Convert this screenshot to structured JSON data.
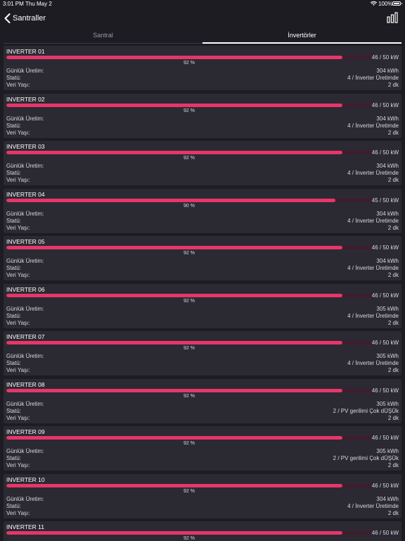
{
  "status_bar": {
    "time": "3:01 PM",
    "date": "Thu May 2",
    "battery": "100%",
    "icons": [
      "wifi-icon",
      "battery-icon"
    ]
  },
  "nav": {
    "back_label": "Santraller",
    "icons": [
      "chevron-left-icon",
      "bar-chart-icon"
    ]
  },
  "tabs": [
    {
      "label": "Santral",
      "active": false
    },
    {
      "label": "İnvertörler",
      "active": true
    }
  ],
  "labels": {
    "daily": "Günlük Üretim:",
    "status": "Statü:",
    "age": "Veri Yaşı:"
  },
  "colors": {
    "bar": "#e8356a",
    "track": "#3f1d2c",
    "card": "#2b2a33",
    "background": "#1d1c22"
  },
  "inverters": [
    {
      "name": "INVERTER 01",
      "percent_value": 92,
      "percent": "92 %",
      "power": "46 / 50 kW",
      "daily": "304 kWh",
      "status": "4 / İnverter Üretimde",
      "age": "2 dk"
    },
    {
      "name": "INVERTER 02",
      "percent_value": 92,
      "percent": "92 %",
      "power": "46 / 50 kW",
      "daily": "304 kWh",
      "status": "4 / İnverter Üretimde",
      "age": "2 dk"
    },
    {
      "name": "INVERTER 03",
      "percent_value": 92,
      "percent": "92 %",
      "power": "46 / 50 kW",
      "daily": "304 kWh",
      "status": "4 / İnverter Üretimde",
      "age": "2 dk"
    },
    {
      "name": "INVERTER 04",
      "percent_value": 90,
      "percent": "90 %",
      "power": "45 / 50 kW",
      "daily": "304 kWh",
      "status": "4 / İnverter Üretimde",
      "age": "2 dk"
    },
    {
      "name": "INVERTER 05",
      "percent_value": 92,
      "percent": "92 %",
      "power": "46 / 50 kW",
      "daily": "304 kWh",
      "status": "4 / İnverter Üretimde",
      "age": "2 dk"
    },
    {
      "name": "INVERTER 06",
      "percent_value": 92,
      "percent": "92 %",
      "power": "46 / 50 kW",
      "daily": "305 kWh",
      "status": "4 / İnverter Üretimde",
      "age": "2 dk"
    },
    {
      "name": "INVERTER 07",
      "percent_value": 92,
      "percent": "92 %",
      "power": "46 / 50 kW",
      "daily": "305 kWh",
      "status": "4 / İnverter Üretimde",
      "age": "2 dk"
    },
    {
      "name": "INVERTER 08",
      "percent_value": 92,
      "percent": "92 %",
      "power": "46 / 50 kW",
      "daily": "305 kWh",
      "status": "2 / PV gerilimi Çok dÜŞÜk",
      "age": "2 dk"
    },
    {
      "name": "INVERTER 09",
      "percent_value": 92,
      "percent": "92 %",
      "power": "46 / 50 kW",
      "daily": "305 kWh",
      "status": "2 / PV gerilimi Çok dÜŞÜk",
      "age": "2 dk"
    },
    {
      "name": "INVERTER 10",
      "percent_value": 92,
      "percent": "92 %",
      "power": "46 / 50 kW",
      "daily": "304 kWh",
      "status": "4 / İnverter Üretimde",
      "age": "2 dk"
    },
    {
      "name": "INVERTER 11",
      "percent_value": 92,
      "percent": "92 %",
      "power": "46 / 50 kW",
      "daily": "",
      "status": "",
      "age": ""
    }
  ]
}
